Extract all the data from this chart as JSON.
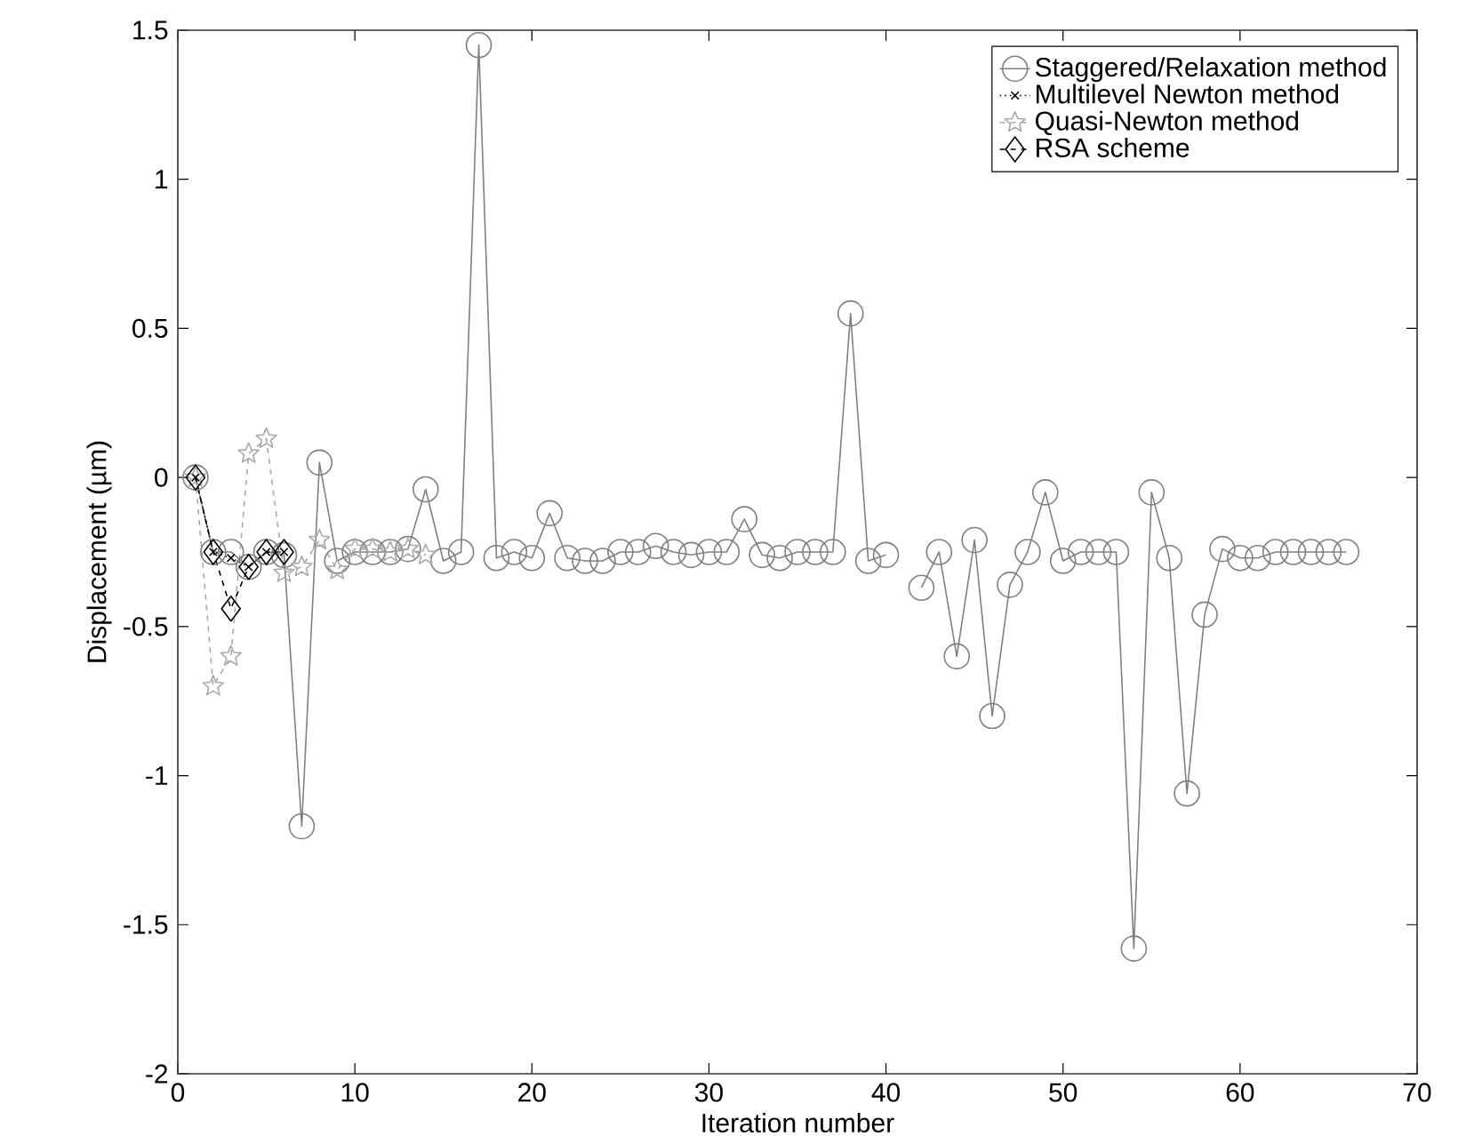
{
  "chart_data": {
    "type": "line",
    "xlabel": "Iteration number",
    "ylabel": "Displacement (µm)",
    "xlim": [
      0,
      70
    ],
    "xticks": [
      0,
      10,
      20,
      30,
      40,
      50,
      60,
      70
    ],
    "ylim": [
      -2,
      1.5
    ],
    "yticks": [
      -2,
      -1.5,
      -1,
      -0.5,
      0,
      0.5,
      1,
      1.5
    ],
    "grid": false,
    "legend": "top right",
    "series": [
      {
        "name": "Staggered/Relaxation method",
        "color": "#808080",
        "marker": "circle",
        "line_style": "solid",
        "x": [
          1,
          2,
          3,
          4,
          5,
          6,
          7,
          8,
          9,
          10,
          11,
          12,
          13,
          14,
          15,
          16,
          17,
          18,
          19,
          20,
          21,
          22,
          23,
          24,
          25,
          26,
          27,
          28,
          29,
          30,
          31,
          32,
          33,
          34,
          35,
          36,
          37,
          38,
          39,
          40,
          41,
          42,
          43,
          44,
          45,
          46,
          47,
          48,
          49,
          50,
          51,
          52,
          53,
          54,
          55,
          56,
          57,
          58,
          59,
          60,
          61,
          62,
          63,
          64,
          65,
          66
        ],
        "values": [
          0,
          -0.25,
          -0.25,
          -0.3,
          -0.25,
          -0.26,
          -1.17,
          0.05,
          -0.28,
          -0.25,
          -0.25,
          -0.25,
          -0.24,
          -0.04,
          -0.28,
          -0.25,
          1.45,
          -0.27,
          -0.25,
          -0.27,
          -0.12,
          -0.27,
          -0.28,
          -0.28,
          -0.25,
          -0.25,
          -0.23,
          -0.25,
          -0.26,
          -0.25,
          -0.25,
          -0.14,
          -0.26,
          -0.27,
          -0.25,
          -0.25,
          -0.25,
          0.55,
          -0.28,
          -0.26,
          null,
          -0.37,
          -0.25,
          -0.6,
          -0.21,
          -0.8,
          -0.36,
          -0.25,
          -0.05,
          -0.28,
          -0.25,
          -0.25,
          -0.25,
          -1.58,
          -0.05,
          -0.27,
          -1.06,
          -0.46,
          -0.24,
          -0.27,
          -0.27,
          -0.25,
          -0.25,
          -0.25,
          -0.25,
          -0.25
        ]
      },
      {
        "name": "Multilevel Newton method",
        "color": "#000000",
        "marker": "cross",
        "line_style": "dotted",
        "x": [
          1,
          2,
          3,
          4,
          5,
          6
        ],
        "values": [
          0,
          -0.25,
          -0.27,
          -0.3,
          -0.25,
          -0.25
        ]
      },
      {
        "name": "Quasi-Newton method",
        "color": "#aaaaaa",
        "marker": "star",
        "line_style": "dashed",
        "x": [
          1,
          2,
          3,
          4,
          5,
          6,
          7,
          8,
          9,
          10,
          11,
          12,
          13,
          14
        ],
        "values": [
          0,
          -0.7,
          -0.6,
          0.08,
          0.13,
          -0.32,
          -0.3,
          -0.21,
          -0.31,
          -0.24,
          -0.24,
          -0.25,
          -0.24,
          -0.26
        ]
      },
      {
        "name": "RSA scheme",
        "color": "#000000",
        "marker": "diamond",
        "line_style": "dashed",
        "x": [
          1,
          2,
          3,
          4,
          5,
          6
        ],
        "values": [
          0,
          -0.25,
          -0.44,
          -0.3,
          -0.25,
          -0.25
        ]
      }
    ]
  }
}
